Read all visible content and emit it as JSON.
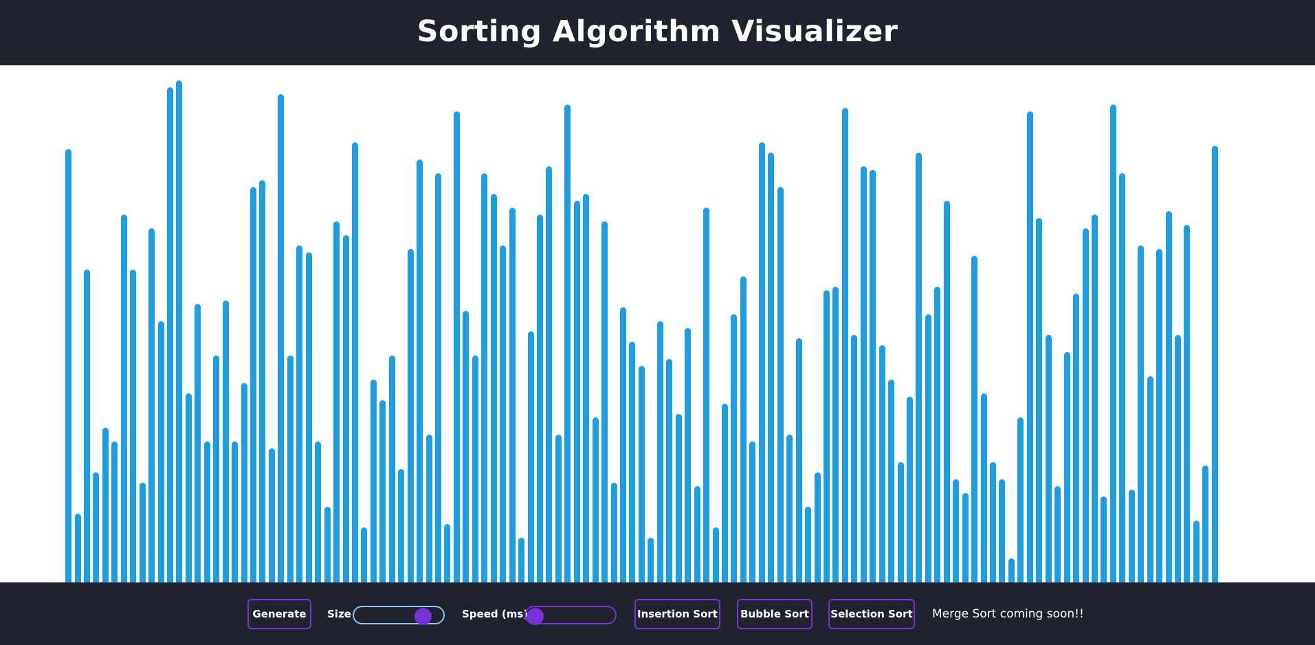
{
  "header": {
    "title": "Sorting Algorithm Visualizer"
  },
  "colors": {
    "bar": "#1d9de2",
    "panel": "#1e232e",
    "accent": "#7b2fd6",
    "size_slider_border": "#8fc4ff"
  },
  "controls": {
    "generate_label": "Generate",
    "size_label": "Size",
    "size_value_fraction": 0.84,
    "speed_label": "Speed (ms)",
    "speed_value_fraction": 0.0,
    "insertion_label": "Insertion Sort",
    "bubble_label": "Bubble Sort",
    "selection_label": "Selection Sort",
    "note": "Merge Sort coming soon!!"
  },
  "array": {
    "values": [
      630,
      100,
      455,
      160,
      225,
      205,
      535,
      455,
      145,
      515,
      380,
      720,
      730,
      275,
      405,
      205,
      330,
      410,
      205,
      290,
      575,
      585,
      195,
      710,
      330,
      490,
      480,
      205,
      110,
      525,
      505,
      640,
      80,
      295,
      265,
      330,
      165,
      485,
      615,
      215,
      595,
      85,
      685,
      395,
      330,
      595,
      565,
      490,
      545,
      65,
      365,
      535,
      605,
      215,
      695,
      555,
      565,
      240,
      525,
      145,
      400,
      350,
      315,
      65,
      380,
      325,
      245,
      370,
      140,
      545,
      80,
      260,
      390,
      445,
      205,
      640,
      625,
      575,
      215,
      355,
      110,
      160,
      425,
      430,
      690,
      360,
      605,
      600,
      345,
      295,
      175,
      270,
      625,
      390,
      430,
      555,
      150,
      130,
      475,
      275,
      175,
      150,
      35,
      240,
      685,
      530,
      360,
      140,
      335,
      420,
      515,
      535,
      125,
      695,
      595,
      135,
      490,
      300,
      485,
      540,
      360,
      520,
      90,
      170,
      635
    ]
  }
}
